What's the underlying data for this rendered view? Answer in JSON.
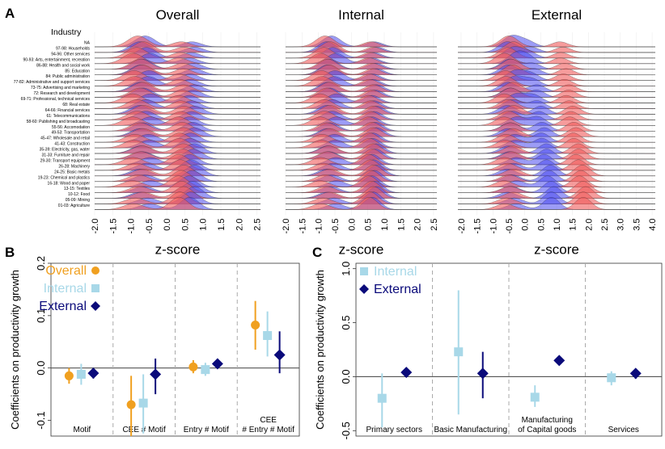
{
  "chart_data": [
    {
      "panel": "A",
      "type": "ridgeline",
      "row_header": "Industry",
      "industries": [
        "NA",
        "97-98: Households",
        "94-96: Other services",
        "90-93: Arts, entertainment, recreation",
        "86-88: Health and social work",
        "85: Education",
        "84: Public administration",
        "77-82: Administrative and support services",
        "73-75: Advertising and marketing",
        "72: Research and development",
        "69-71: Professional, technical services",
        "68: Real estate",
        "64-66: Financial services",
        "61: Telecommunications",
        "58-60: Publishing and broadcasting",
        "55-56: Accomodation",
        "49-53: Transportation",
        "45-47: Wholesale and retail",
        "41-43: Construction",
        "35-39: Electricity, gas, water",
        "31-33: Furniture and repair",
        "29-30: Transport equipment",
        "26-28: Machinery",
        "24-25: Basic metals",
        "19-23: Chemical and plastics",
        "16-18: Wood and paper",
        "13-15: Textiles",
        "10-12: Food",
        "05-09: Mining",
        "01-03: Agriculture"
      ],
      "colors": {
        "red": "#f05a5a",
        "blue": "#4a4aee"
      },
      "panels": [
        {
          "title": "Overall",
          "xlabel": "z-score",
          "ticks": [
            "-2.0",
            "-1.5",
            "-1.0",
            "-0.5",
            "0.0",
            "0.5",
            "1.0",
            "1.5",
            "2.0",
            "2.5"
          ],
          "xlim": [
            -2.0,
            2.6
          ],
          "red_modes": [
            -0.8,
            0.4
          ],
          "blue_modes": [
            -0.6,
            0.7
          ]
        },
        {
          "title": "Internal",
          "xlabel": "z-score",
          "ticks": [
            "-2.0",
            "-1.5",
            "-1.0",
            "-0.5",
            "0.0",
            "0.5",
            "1.0",
            "1.5",
            "2.0",
            "2.5"
          ],
          "xlim": [
            -2.0,
            2.6
          ],
          "red_modes": [
            -0.8,
            0.6
          ],
          "blue_modes": [
            -0.6,
            0.7
          ]
        },
        {
          "title": "External",
          "xlabel": "z-score",
          "ticks": [
            "-2.0",
            "-1.5",
            "-1.0",
            "-0.5",
            "0.0",
            "0.5",
            "1.0",
            "1.5",
            "2.0",
            "2.5",
            "3.0",
            "3.5",
            "4.0"
          ],
          "xlim": [
            -2.1,
            4.1
          ],
          "red_modes": [
            -0.5,
            1.5
          ],
          "blue_modes": [
            -0.4,
            0.5
          ]
        }
      ]
    },
    {
      "panel": "B",
      "type": "coefficient_plot",
      "ylabel": "Coefficients on productivity growth",
      "ylim": [
        -0.13,
        0.2
      ],
      "yticks": [
        "-0.1",
        "0.0",
        "0.1",
        "0.2"
      ],
      "ytick_values": [
        -0.1,
        0.0,
        0.1,
        0.2
      ],
      "categories": [
        "Motif",
        "CEE # Motif",
        "Entry # Motif",
        "CEE\n# Entry # Motif"
      ],
      "series": [
        {
          "name": "Overall",
          "color": "#f0a020",
          "marker": "circle",
          "est": [
            -0.015,
            -0.07,
            0.002,
            0.082
          ],
          "lo": [
            -0.03,
            -0.13,
            -0.01,
            0.035
          ],
          "hi": [
            0.0,
            -0.015,
            0.015,
            0.128
          ]
        },
        {
          "name": "Internal",
          "color": "#a8d8e8",
          "marker": "square",
          "est": [
            -0.012,
            -0.067,
            -0.003,
            0.062
          ],
          "lo": [
            -0.032,
            -0.125,
            -0.015,
            0.022
          ],
          "hi": [
            0.008,
            -0.012,
            0.01,
            0.108
          ]
        },
        {
          "name": "External",
          "color": "#0a0a7a",
          "marker": "diamond",
          "est": [
            -0.01,
            -0.012,
            0.008,
            0.025
          ],
          "lo": [
            -0.02,
            -0.05,
            0.0,
            -0.01
          ],
          "hi": [
            0.0,
            0.018,
            0.015,
            0.07
          ]
        }
      ]
    },
    {
      "panel": "C",
      "type": "coefficient_plot",
      "ylabel": "Coefficients on productivity growth",
      "ylim": [
        -0.55,
        1.05
      ],
      "yticks": [
        "-0.5",
        "0.0",
        "0.5",
        "1.0"
      ],
      "ytick_values": [
        -0.5,
        0.0,
        0.5,
        1.0
      ],
      "categories": [
        "Primary sectors",
        "Basic Manufacturing",
        "Manufacturing\nof Capital goods",
        "Services"
      ],
      "series": [
        {
          "name": "Internal",
          "color": "#a8d8e8",
          "marker": "square",
          "est": [
            -0.2,
            0.23,
            -0.19,
            -0.01
          ],
          "lo": [
            -0.47,
            -0.35,
            -0.28,
            -0.08
          ],
          "hi": [
            0.03,
            0.8,
            -0.08,
            0.05
          ]
        },
        {
          "name": "External",
          "color": "#0a0a7a",
          "marker": "diamond",
          "est": [
            0.04,
            0.03,
            0.15,
            0.03
          ],
          "lo": [
            0.0,
            -0.2,
            0.15,
            -0.02
          ],
          "hi": [
            0.07,
            0.23,
            0.15,
            0.07
          ]
        }
      ]
    }
  ],
  "labels": {
    "panel_a": "A",
    "panel_b": "B",
    "panel_c": "C"
  }
}
